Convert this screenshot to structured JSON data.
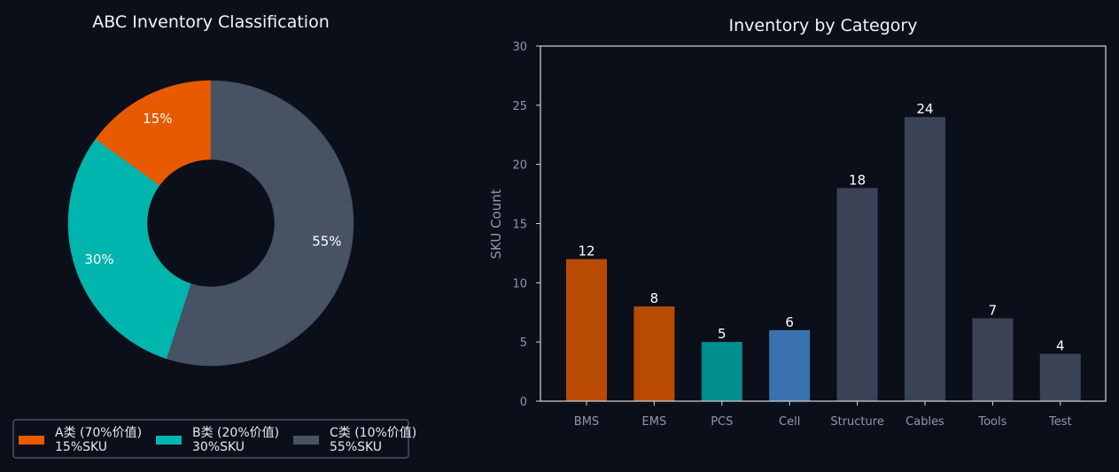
{
  "chart_data": [
    {
      "type": "pie",
      "title": "ABC Inventory Classification",
      "donut": true,
      "start_angle_deg": 90,
      "direction": "counterclockwise",
      "slices": [
        {
          "value": 15,
          "label": "15%",
          "legend": [
            "A类 (70%价值)",
            "15%SKU"
          ],
          "color": "#e85a00"
        },
        {
          "value": 30,
          "label": "30%",
          "legend": [
            "B类 (20%价值)",
            "30%SKU"
          ],
          "color": "#00b5ad"
        },
        {
          "value": 55,
          "label": "55%",
          "legend": [
            "C类 (10%价值)",
            "55%SKU"
          ],
          "color": "#475263"
        }
      ],
      "legend_placement": "bottom"
    },
    {
      "type": "bar",
      "title": "Inventory by Category",
      "xlabel": "",
      "ylabel": "SKU Count",
      "ylim": [
        0,
        30
      ],
      "yticks": [
        0,
        5,
        10,
        15,
        20,
        25,
        30
      ],
      "categories": [
        "BMS",
        "EMS",
        "PCS",
        "Cell",
        "Structure",
        "Cables",
        "Tools",
        "Test"
      ],
      "values": [
        12,
        8,
        5,
        6,
        18,
        24,
        7,
        4
      ],
      "bar_colors": [
        "#b84a04",
        "#b84a04",
        "#008f8c",
        "#3b72b0",
        "#3b4456",
        "#3b4456",
        "#3b4456",
        "#3b4456"
      ],
      "grid": false
    }
  ],
  "colors": {
    "background": "#0b0f19",
    "axis": "#d0d4dc",
    "tick_text": "#8f97a8",
    "legend_border": "#5b6272"
  }
}
